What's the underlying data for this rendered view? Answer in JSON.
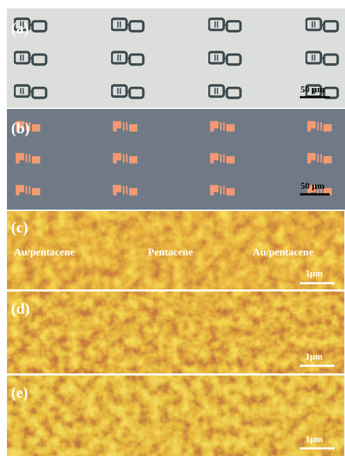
{
  "panels": [
    {
      "label": "(a)",
      "scale_bar": "50 µm"
    },
    {
      "label": "(b)",
      "scale_bar": "50 µm"
    },
    {
      "label": "(c)",
      "annotations": [
        "Au/pentacene",
        "Pentacene",
        "Au/pentacene"
      ],
      "scale_bar": "1µm"
    },
    {
      "label": "(d)",
      "scale_bar": "1µm"
    },
    {
      "label": "(e)",
      "scale_bar": "1µm"
    }
  ]
}
